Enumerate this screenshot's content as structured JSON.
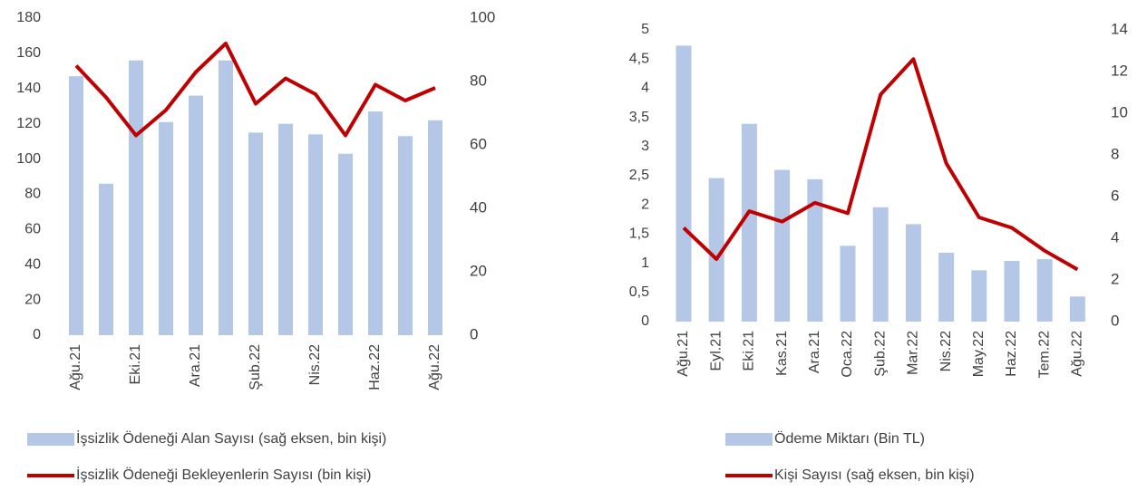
{
  "chart_data": [
    {
      "type": "bar+line",
      "categories": [
        "Ağu.21",
        null,
        "Eki.21",
        null,
        "Ara.21",
        null,
        "Şub.22",
        null,
        "Nis.22",
        null,
        "Haz.22",
        null,
        "Ağu.22"
      ],
      "series": [
        {
          "name": "İşsizlik Ödeneği Alan Sayısı (sağ eksen, bin kişi)",
          "type": "bar",
          "color": "#b4c7e7",
          "values": [
            147,
            86,
            156,
            121,
            136,
            156,
            115,
            120,
            114,
            103,
            127,
            113,
            122
          ]
        },
        {
          "name": "İşsizlik Ödeneği Bekleyenlerin Sayısı (bin kişi)",
          "type": "line",
          "axis": "y2",
          "color": "#c00000",
          "values": [
            85,
            75,
            63,
            71,
            83,
            92,
            73,
            81,
            76,
            63,
            79,
            74,
            78
          ]
        }
      ],
      "ylim": [
        0,
        180
      ],
      "yticks": [
        0,
        20,
        40,
        60,
        80,
        100,
        120,
        140,
        160,
        180
      ],
      "y2lim": [
        0,
        100
      ],
      "y2ticks": [
        0,
        20,
        40,
        60,
        80,
        100
      ]
    },
    {
      "type": "bar+line",
      "categories": [
        "Ağu.21",
        "Eyl.21",
        "Eki.21",
        "Kas.21",
        "Ara.21",
        "Oca.22",
        "Şub.22",
        "Mar.22",
        "Nis.22",
        "May.22",
        "Haz.22",
        "Tem.22",
        "Ağu.22"
      ],
      "series": [
        {
          "name": "Ödeme Miktarı (Bin TL)",
          "type": "bar",
          "color": "#b4c7e7",
          "values": [
            4.73,
            2.46,
            3.39,
            2.6,
            2.44,
            1.3,
            1.96,
            1.67,
            1.18,
            0.88,
            1.04,
            1.07,
            0.43
          ]
        },
        {
          "name": "Kişi Sayısı (sağ eksen, bin kişi)",
          "type": "line",
          "axis": "y2",
          "color": "#c00000",
          "values": [
            4.5,
            3.0,
            5.3,
            4.8,
            5.7,
            5.2,
            10.9,
            12.6,
            7.6,
            5.0,
            4.5,
            3.4,
            2.5
          ]
        }
      ],
      "ylim": [
        0,
        5
      ],
      "yticks": [
        0,
        {
          "value": 0.5,
          "label": "0,5"
        },
        1,
        {
          "value": 1.5,
          "label": "1,5"
        },
        2,
        {
          "value": 2.5,
          "label": "2,5"
        },
        3,
        {
          "value": 3.5,
          "label": "3,5"
        },
        4,
        {
          "value": 4.5,
          "label": "4,5"
        },
        5
      ],
      "y2lim": [
        0,
        14
      ],
      "y2ticks": [
        0,
        2,
        4,
        6,
        8,
        10,
        12,
        14
      ]
    }
  ]
}
